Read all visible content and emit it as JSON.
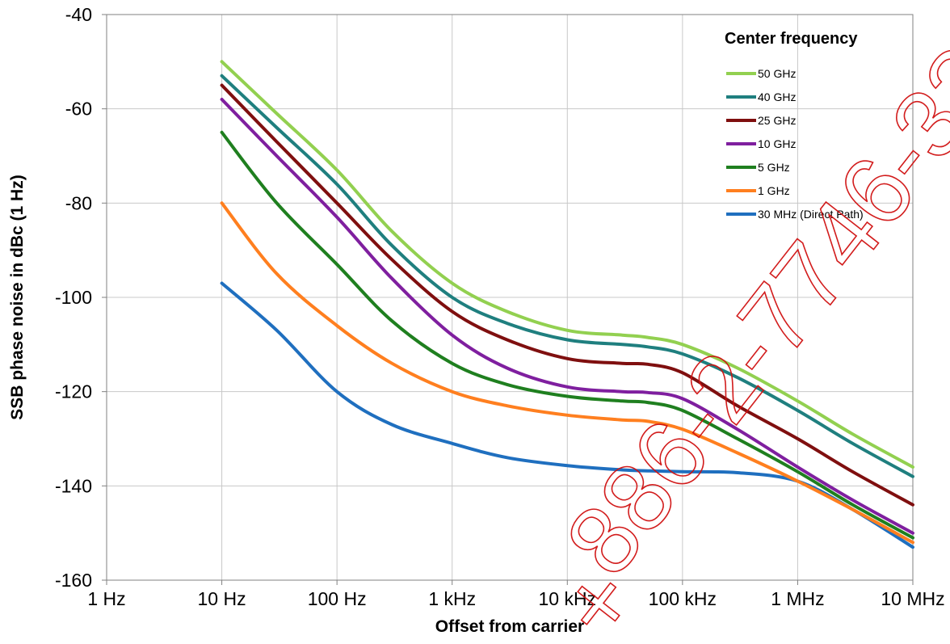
{
  "chart_data": {
    "type": "line",
    "xlabel": "Offset from carrier",
    "ylabel": "SSB phase noise in dBc (1 Hz)",
    "x_scale": "log",
    "xlim": [
      1,
      10000000
    ],
    "ylim": [
      -160,
      -40
    ],
    "x_ticks": [
      1,
      10,
      100,
      1000,
      10000,
      100000,
      1000000,
      10000000
    ],
    "x_tick_labels": [
      "1 Hz",
      "10 Hz",
      "100 Hz",
      "1 kHz",
      "10 kHz",
      "100 kHz",
      "1 MHz",
      "10 MHz"
    ],
    "y_ticks": [
      -160,
      -140,
      -120,
      -100,
      -80,
      -60,
      -40
    ],
    "y_tick_labels": [
      "-160",
      "-140",
      "-120",
      "-100",
      "-80",
      "-60",
      "-40"
    ],
    "grid": true,
    "legend_title": "Center frequency",
    "legend_position": "top-right",
    "x": [
      10,
      30,
      100,
      300,
      1000,
      3000,
      10000,
      30000,
      50000,
      100000,
      300000,
      1000000,
      3000000,
      10000000
    ],
    "series": [
      {
        "name": "50 GHz",
        "color": "#92d050",
        "values": [
          -50,
          -61,
          -73,
          -86,
          -97,
          -103,
          -107,
          -108,
          -108.5,
          -110,
          -115,
          -122,
          -129,
          -136
        ]
      },
      {
        "name": "40 GHz",
        "color": "#1f7f7f",
        "values": [
          -53,
          -64,
          -76,
          -89,
          -100,
          -105.5,
          -109,
          -110,
          -110.5,
          -112,
          -117,
          -124,
          -131,
          -138
        ]
      },
      {
        "name": "25 GHz",
        "color": "#7f0f0f",
        "values": [
          -55,
          -67,
          -80,
          -92,
          -103,
          -109,
          -113,
          -114,
          -114.2,
          -116,
          -123,
          -130,
          -137,
          -144
        ]
      },
      {
        "name": "10 GHz",
        "color": "#7f1f9f",
        "values": [
          -58,
          -70,
          -83,
          -96,
          -108,
          -115,
          -119,
          -120,
          -120.2,
          -121.5,
          -128,
          -136,
          -143,
          -150
        ]
      },
      {
        "name": "5 GHz",
        "color": "#1f7f1f",
        "values": [
          -65,
          -80,
          -93,
          -105,
          -114,
          -118.5,
          -121,
          -122,
          -122.3,
          -124,
          -130,
          -137,
          -144,
          -151
        ]
      },
      {
        "name": "1 GHz",
        "color": "#ff7f1f",
        "values": [
          -80,
          -95,
          -106,
          -114,
          -120,
          -123,
          -125,
          -126,
          -126.3,
          -128,
          -133,
          -139,
          -145,
          -152
        ]
      },
      {
        "name": "30 MHz (Direct Path)",
        "color": "#1f6fbf",
        "values": [
          -97,
          -107,
          -120,
          -127,
          -131,
          -134,
          -135.7,
          -136.6,
          -136.8,
          -137,
          -137.2,
          -139,
          -145,
          -153
        ]
      }
    ]
  }
}
